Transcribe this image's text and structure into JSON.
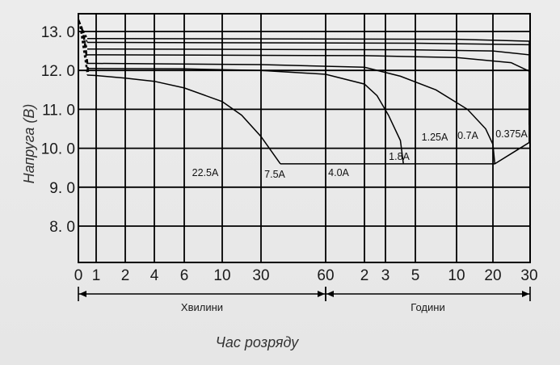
{
  "chart_data": {
    "type": "line",
    "ylabel": "Напруга (В)",
    "xlabel": "Час розряду",
    "ylim": [
      7.2,
      13.4
    ],
    "y_ticks": [
      {
        "value": 13.0,
        "label": "13. 0"
      },
      {
        "value": 12.0,
        "label": "12. 0"
      },
      {
        "value": 11.0,
        "label": "11. 0"
      },
      {
        "value": 10.0,
        "label": "10. 0"
      },
      {
        "value": 9.0,
        "label": "9. 0"
      },
      {
        "value": 8.0,
        "label": "8. 0"
      }
    ],
    "x_ticks": [
      "0",
      "1",
      "2",
      "4",
      "6",
      "10",
      "30",
      "60",
      "2",
      "3",
      "5",
      "10",
      "20",
      "30"
    ],
    "x_segments": [
      {
        "label": "Хвилини",
        "from": "0",
        "to": "60"
      },
      {
        "label": "Години",
        "from": "60",
        "to": "30"
      }
    ],
    "grid": true,
    "series": [
      {
        "name": "22.5A",
        "points": [
          [
            0.5,
            11.88
          ],
          [
            1,
            11.87
          ],
          [
            2,
            11.8
          ],
          [
            3,
            11.72
          ],
          [
            4,
            11.55
          ],
          [
            5,
            11.2
          ],
          [
            5.5,
            10.85
          ],
          [
            6,
            10.3
          ],
          [
            6.3,
            9.6
          ]
        ]
      },
      {
        "name": "7.5A",
        "points": [
          [
            0.5,
            12.05
          ],
          [
            1,
            12.05
          ],
          [
            4,
            12.04
          ],
          [
            6,
            12.0
          ],
          [
            7,
            11.9
          ],
          [
            8,
            11.65
          ],
          [
            8.6,
            11.35
          ],
          [
            9.1,
            10.85
          ],
          [
            9.5,
            10.2
          ],
          [
            9.6,
            9.6
          ]
        ]
      },
      {
        "name": "4.0A",
        "points": [
          [
            0.5,
            12.18
          ],
          [
            1,
            12.18
          ],
          [
            6,
            12.15
          ],
          [
            8,
            12.08
          ],
          [
            9.5,
            11.85
          ],
          [
            10.5,
            11.5
          ],
          [
            11.3,
            11.0
          ],
          [
            11.8,
            10.5
          ],
          [
            12,
            10.1
          ],
          [
            12.05,
            9.6
          ]
        ]
      },
      {
        "name": "1.8A",
        "points": [
          [
            0.5,
            12.4
          ],
          [
            1,
            12.4
          ],
          [
            8,
            12.38
          ],
          [
            11,
            12.33
          ],
          [
            12.5,
            12.2
          ],
          [
            13.3,
            11.98
          ],
          [
            14.0,
            11.62
          ],
          [
            14.4,
            11.3
          ],
          [
            14.8,
            10.9
          ],
          [
            15.0,
            10.35
          ],
          [
            15.05,
            10.15
          ]
        ]
      },
      {
        "name": "1.25A",
        "points": [
          [
            0.5,
            12.55
          ],
          [
            1,
            12.55
          ],
          [
            10,
            12.53
          ],
          [
            12,
            12.5
          ],
          [
            13.5,
            12.4
          ],
          [
            14.7,
            12.15
          ],
          [
            15.6,
            11.8
          ],
          [
            16.2,
            11.3
          ],
          [
            16.5,
            10.95
          ],
          [
            16.7,
            10.6
          ]
        ]
      },
      {
        "name": "0.7A",
        "points": [
          [
            0.5,
            12.72
          ],
          [
            1,
            12.72
          ],
          [
            10,
            12.7
          ],
          [
            13,
            12.66
          ],
          [
            15,
            12.5
          ],
          [
            16.4,
            12.28
          ],
          [
            17.3,
            11.95
          ],
          [
            17.9,
            11.5
          ],
          [
            18.3,
            11.0
          ],
          [
            18.45,
            10.75
          ],
          [
            18.5,
            10.6
          ]
        ]
      },
      {
        "name": "0.375A",
        "points": [
          [
            0.5,
            12.82
          ],
          [
            1,
            12.82
          ],
          [
            11,
            12.8
          ],
          [
            14,
            12.75
          ],
          [
            16,
            12.6
          ],
          [
            17.8,
            12.35
          ],
          [
            18.8,
            12.0
          ],
          [
            19.4,
            11.5
          ],
          [
            19.8,
            11.0
          ],
          [
            20,
            10.6
          ]
        ]
      }
    ],
    "cutoff_line": {
      "points": [
        [
          6.3,
          9.6
        ],
        [
          9.6,
          9.6
        ],
        [
          12.05,
          9.6
        ],
        [
          15.05,
          10.15
        ],
        [
          16.7,
          10.6
        ],
        [
          18.5,
          10.6
        ],
        [
          20,
          10.6
        ]
      ]
    },
    "dashed_start": [
      [
        0.0,
        13.3
      ],
      [
        0.25,
        13.0
      ],
      [
        0.4,
        12.6
      ],
      [
        0.5,
        12.2
      ],
      [
        0.55,
        11.9
      ]
    ]
  }
}
